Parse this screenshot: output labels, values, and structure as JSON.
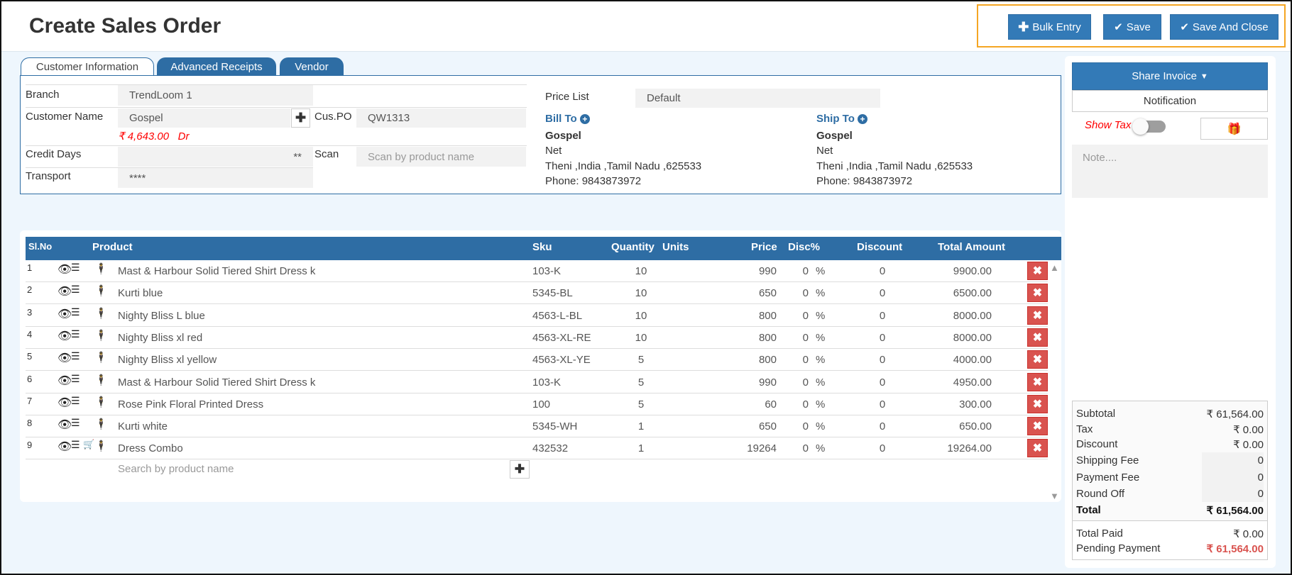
{
  "header": {
    "title": "Create Sales Order",
    "bulk_entry": "Bulk Entry",
    "save": "Save",
    "save_close": "Save And Close"
  },
  "tabs": [
    "Customer Information",
    "Advanced Receipts",
    "Vendor"
  ],
  "form": {
    "branch_label": "Branch",
    "branch_value": "TrendLoom 1",
    "customer_label": "Customer Name",
    "customer_value": "Gospel",
    "balance": "₹ 4,643.00",
    "balance_type": "Dr",
    "cuspo_label": "Cus.PO",
    "cuspo_value": "QW1313",
    "credit_label": "Credit Days",
    "credit_value": "**",
    "scan_label": "Scan",
    "scan_placeholder": "Scan by product name",
    "transport_label": "Transport",
    "transport_value": "****",
    "price_list_label": "Price List",
    "price_list_value": "Default"
  },
  "bill_to": {
    "label": "Bill To",
    "name": "Gospel",
    "line1": "Net",
    "address": "Theni ,India ,Tamil Nadu ,625533",
    "phone": "Phone: 9843873972"
  },
  "ship_to": {
    "label": "Ship To",
    "name": "Gospel",
    "line1": "Net",
    "address": "Theni ,India ,Tamil Nadu ,625533",
    "phone": "Phone: 9843873972"
  },
  "table": {
    "headers": {
      "slno": "Sl.No",
      "product": "Product",
      "sku": "Sku",
      "quantity": "Quantity",
      "units": "Units",
      "price": "Price",
      "disc_pct": "Disc%",
      "discount": "Discount",
      "total": "Total Amount"
    },
    "rows": [
      {
        "sl": "1",
        "product": "Mast & Harbour Solid Tiered Shirt Dress k",
        "sku": "103-K",
        "qty": "10",
        "price": "990",
        "disc": "0",
        "discount": "0",
        "total": "9900.00",
        "cart": false
      },
      {
        "sl": "2",
        "product": "Kurti blue",
        "sku": "5345-BL",
        "qty": "10",
        "price": "650",
        "disc": "0",
        "discount": "0",
        "total": "6500.00",
        "cart": false
      },
      {
        "sl": "3",
        "product": "Nighty Bliss L blue",
        "sku": "4563-L-BL",
        "qty": "10",
        "price": "800",
        "disc": "0",
        "discount": "0",
        "total": "8000.00",
        "cart": false
      },
      {
        "sl": "4",
        "product": "Nighty Bliss xl red",
        "sku": "4563-XL-RE",
        "qty": "10",
        "price": "800",
        "disc": "0",
        "discount": "0",
        "total": "8000.00",
        "cart": false
      },
      {
        "sl": "5",
        "product": "Nighty Bliss xl yellow",
        "sku": "4563-XL-YE",
        "qty": "5",
        "price": "800",
        "disc": "0",
        "discount": "0",
        "total": "4000.00",
        "cart": false
      },
      {
        "sl": "6",
        "product": "Mast & Harbour Solid Tiered Shirt Dress k",
        "sku": "103-K",
        "qty": "5",
        "price": "990",
        "disc": "0",
        "discount": "0",
        "total": "4950.00",
        "cart": false
      },
      {
        "sl": "7",
        "product": "Rose Pink Floral Printed Dress",
        "sku": "100",
        "qty": "5",
        "price": "60",
        "disc": "0",
        "discount": "0",
        "total": "300.00",
        "cart": false
      },
      {
        "sl": "8",
        "product": "Kurti white",
        "sku": "5345-WH",
        "qty": "1",
        "price": "650",
        "disc": "0",
        "discount": "0",
        "total": "650.00",
        "cart": false
      },
      {
        "sl": "9",
        "product": "Dress Combo",
        "sku": "432532",
        "qty": "1",
        "price": "19264",
        "disc": "0",
        "discount": "0",
        "total": "19264.00",
        "cart": true
      }
    ],
    "search_placeholder": "Search by product name",
    "pct": "%"
  },
  "side": {
    "share_invoice": "Share Invoice",
    "notification": "Notification",
    "show_tax": "Show Tax",
    "show_tax_on": false,
    "note_placeholder": "Note...."
  },
  "totals": {
    "subtotal_label": "Subtotal",
    "subtotal": "₹ 61,564.00",
    "tax_label": "Tax",
    "tax": "₹ 0.00",
    "discount_label": "Discount",
    "discount": "₹ 0.00",
    "shipping_label": "Shipping Fee",
    "shipping": "0",
    "payment_fee_label": "Payment Fee",
    "payment_fee": "0",
    "round_label": "Round Off",
    "round": "0",
    "total_label": "Total",
    "total": "₹ 61,564.00",
    "paid_label": "Total Paid",
    "paid": "₹ 0.00",
    "pending_label": "Pending Payment",
    "pending": "₹ 61,564.00"
  },
  "colors": {
    "primary": "#337ab7",
    "danger": "#d9534f",
    "highlight": "#f5a623",
    "red_text": "#ff0000"
  }
}
